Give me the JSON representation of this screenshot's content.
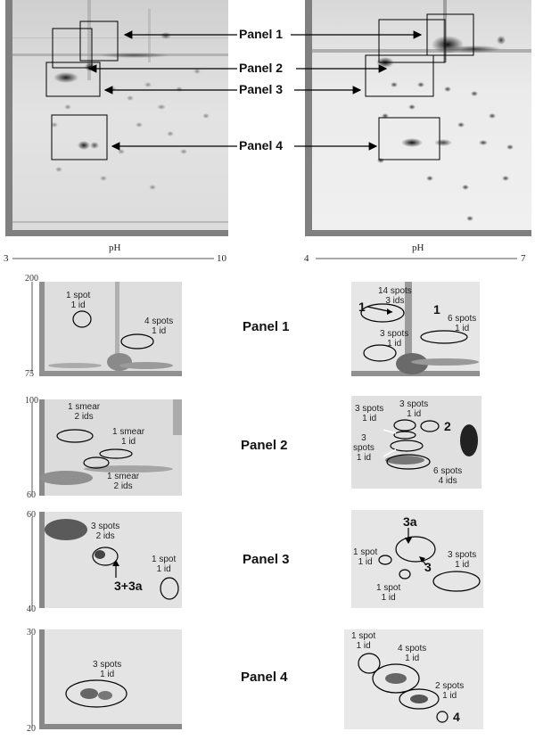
{
  "panel_labels": [
    "Panel 1",
    "Panel 2",
    "Panel 3",
    "Panel 4"
  ],
  "left_axis": {
    "label": "pH",
    "min": "3",
    "max": "10"
  },
  "right_axis": {
    "label": "pH",
    "min": "4",
    "max": "7"
  },
  "mw_ticks": {
    "p1": [
      "200",
      "75"
    ],
    "p2": [
      "100",
      "60"
    ],
    "p3": [
      "60",
      "40"
    ],
    "p4": [
      "30",
      "20"
    ]
  },
  "annotations": {
    "p1_left_a": "1 spot\n1 id",
    "p1_left_b": "4 spots\n1 id",
    "p1_right_a": "14 spots\n3 ids",
    "p1_right_b": "3 spots\n1 id",
    "p1_right_c": "6 spots\n1 id",
    "p1_right_n1": "1",
    "p1_right_n2": "1",
    "p2_left_a": "1 smear\n2 ids",
    "p2_left_b": "1 smear\n1 id",
    "p2_left_c": "1 smear\n2 ids",
    "p2_right_a": "3 spots\n1 id",
    "p2_right_b": "3 spots\n1 id",
    "p2_right_c": "3\nspots\n1 id",
    "p2_right_d": "6 spots\n4 ids",
    "p2_right_n": "2",
    "p3_left_a": "3 spots\n2 ids",
    "p3_left_b": "1 spot\n1 id",
    "p3_left_n": "3+3a",
    "p3_right_a": "1 spot\n1 id",
    "p3_right_b": "1 spot\n1 id",
    "p3_right_c": "3 spots\n1 id",
    "p3_right_n1": "3a",
    "p3_right_n2": "3",
    "p4_left_a": "3 spots\n1 id",
    "p4_right_a": "1 spot\n1 id",
    "p4_right_b": "4 spots\n1 id",
    "p4_right_c": "2 spots\n1 id",
    "p4_right_n": "4"
  }
}
